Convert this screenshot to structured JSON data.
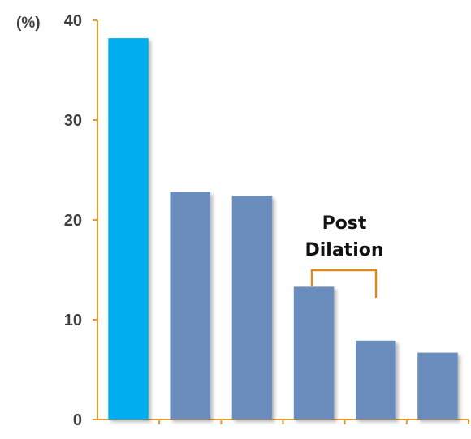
{
  "chart_data": {
    "type": "bar",
    "title": "",
    "xlabel": "",
    "ylabel": "(%)",
    "ylim": [
      0,
      40
    ],
    "yticks": [
      "0",
      "10",
      "20",
      "30",
      "40"
    ],
    "grid": false,
    "categories": [
      "",
      "",
      "",
      "",
      "",
      ""
    ],
    "values": [
      38.2,
      22.8,
      22.4,
      13.3,
      7.9,
      6.7
    ],
    "bar_colors": [
      "#00AEEF",
      "#6A8DBE",
      "#6A8DBE",
      "#6A8DBE",
      "#6A8DBE",
      "#6A8DBE"
    ],
    "axis_color": "#E59A2E",
    "annotation": {
      "line1": "Post",
      "line2": "Dilation",
      "bracket_color": "#D98B1F"
    }
  }
}
